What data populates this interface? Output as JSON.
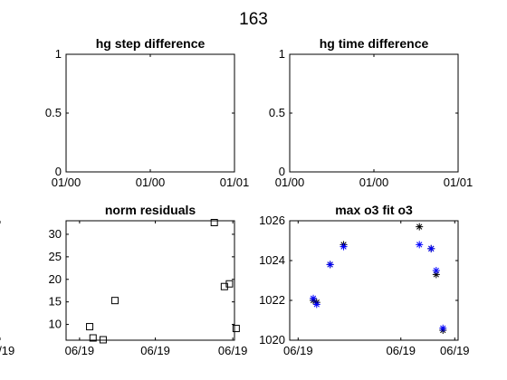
{
  "figure_title": "163",
  "chart_data": [
    {
      "type": "line",
      "title": "hg step difference",
      "xlabel": "",
      "ylabel": "",
      "ylim": [
        0,
        1
      ],
      "yticks": [
        0,
        0.5,
        1
      ],
      "ytick_labels": [
        "0",
        "0.5",
        "1"
      ],
      "xtick_labels": [
        "01/00",
        "01/00",
        "01/01"
      ],
      "series": []
    },
    {
      "type": "line",
      "title": "hg time difference",
      "xlabel": "",
      "ylabel": "",
      "ylim": [
        0,
        1
      ],
      "yticks": [
        0,
        0.5,
        1
      ],
      "ytick_labels": [
        "0",
        "0.5",
        "1"
      ],
      "xtick_labels": [
        "01/00",
        "01/00",
        "01/01"
      ],
      "series": []
    },
    {
      "type": "scatter",
      "title": "norm residuals",
      "xlabel": "",
      "ylabel": "",
      "xlim": [
        0,
        1
      ],
      "ylim": [
        6.5,
        33
      ],
      "yticks": [
        10,
        15,
        20,
        25,
        30
      ],
      "ytick_labels": [
        "10",
        "15",
        "20",
        "25",
        "30"
      ],
      "xtick_labels": [
        "06/19",
        "06/19",
        "06/19",
        "06/19"
      ],
      "series": [
        {
          "name": "norm residuals",
          "marker": "square",
          "color": "#000000",
          "x": [
            0.14,
            0.16,
            0.22,
            0.29,
            0.88,
            0.94,
            0.97,
            1.01
          ],
          "y": [
            9.5,
            7.0,
            6.6,
            15.3,
            32.6,
            18.4,
            19.0,
            9.1
          ]
        }
      ]
    },
    {
      "type": "scatter",
      "title": "max o3 fit o3",
      "xlabel": "",
      "ylabel": "",
      "xlim": [
        0,
        1
      ],
      "ylim": [
        1020,
        1026
      ],
      "yticks": [
        1020,
        1022,
        1024,
        1026
      ],
      "ytick_labels": [
        "1020",
        "1022",
        "1024",
        "1026"
      ],
      "xtick_labels": [
        "06/19",
        "06/19",
        "06/19"
      ],
      "series": [
        {
          "name": "max o3",
          "marker": "asterisk",
          "color": "#000000",
          "x": [
            0.14,
            0.16,
            0.24,
            0.32,
            0.77,
            0.84,
            0.87,
            0.91
          ],
          "y": [
            1022.0,
            1021.9,
            1023.8,
            1024.8,
            1025.7,
            1024.6,
            1023.3,
            1020.5
          ]
        },
        {
          "name": "fit o3",
          "marker": "asterisk",
          "color": "#0000ff",
          "x": [
            0.14,
            0.16,
            0.24,
            0.32,
            0.77,
            0.84,
            0.87,
            0.91
          ],
          "y": [
            1022.1,
            1021.8,
            1023.8,
            1024.7,
            1024.8,
            1024.6,
            1023.5,
            1020.6
          ]
        }
      ]
    }
  ]
}
